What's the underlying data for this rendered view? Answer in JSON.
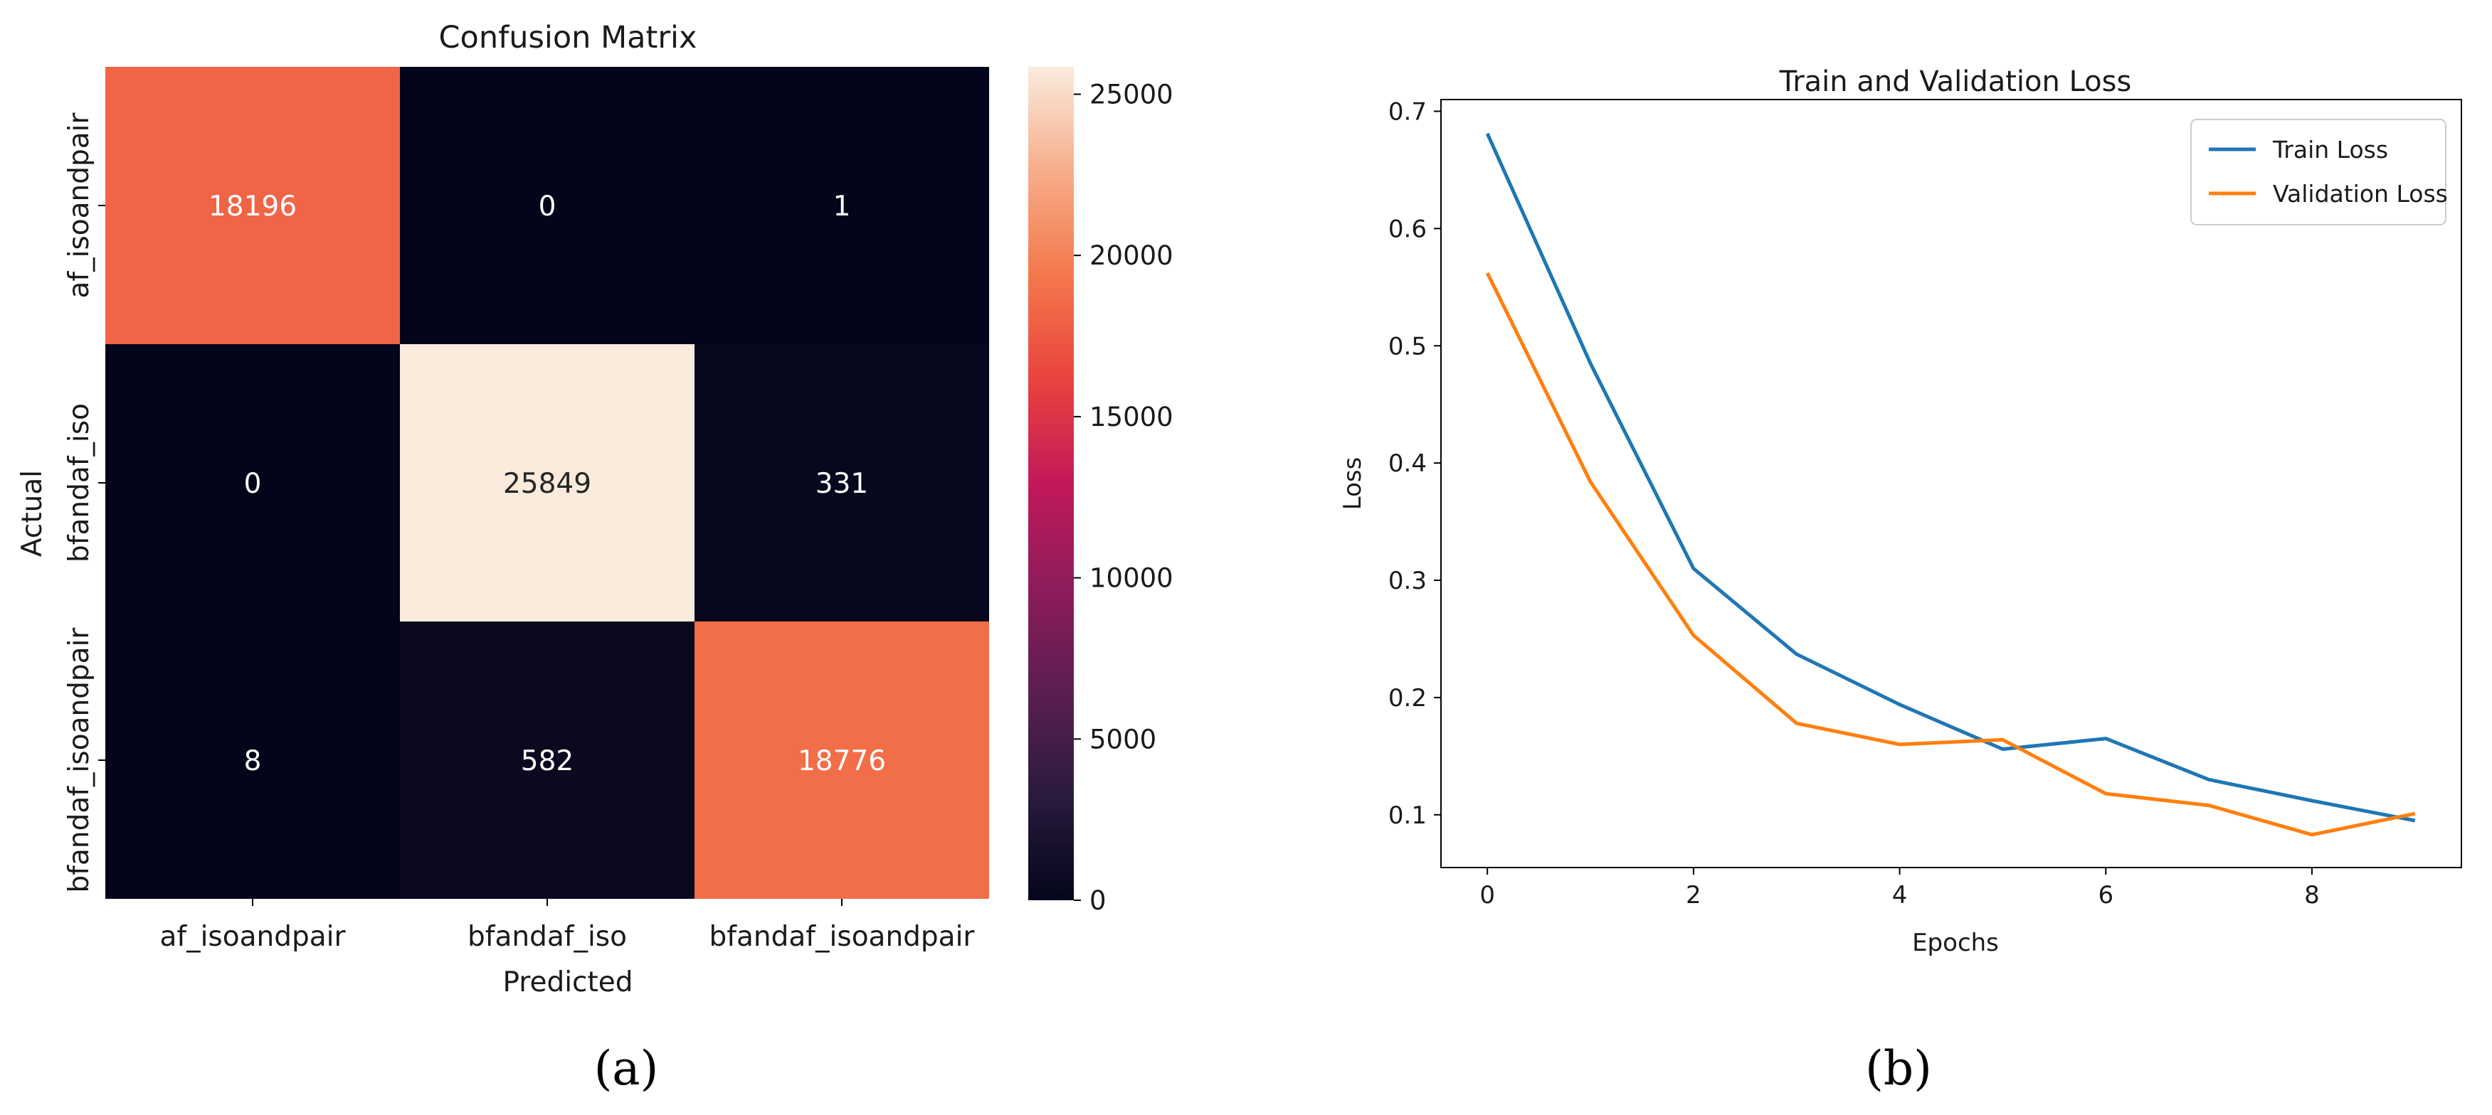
{
  "panels": {
    "a_label": "(a)",
    "b_label": "(b)"
  },
  "chart_data": [
    {
      "type": "heatmap",
      "title": "Confusion Matrix",
      "xlabel": "Predicted",
      "ylabel": "Actual",
      "x_categories": [
        "af_isoandpair",
        "bfandaf_iso",
        "bfandaf_isoandpair"
      ],
      "y_categories": [
        "af_isoandpair",
        "bfandaf_iso",
        "bfandaf_isoandpair"
      ],
      "values": [
        [
          18196,
          0,
          1
        ],
        [
          0,
          25849,
          331
        ],
        [
          8,
          582,
          18776
        ]
      ],
      "colorbar": {
        "min": 0,
        "max": 25849,
        "ticks": [
          0,
          5000,
          10000,
          15000,
          20000,
          25000
        ],
        "colormap": "rocket"
      }
    },
    {
      "type": "line",
      "title": "Train and Validation Loss",
      "xlabel": "Epochs",
      "ylabel": "Loss",
      "x": [
        0,
        1,
        2,
        3,
        4,
        5,
        6,
        7,
        8,
        9
      ],
      "xticks": [
        0,
        2,
        4,
        6,
        8
      ],
      "yticks": [
        0.1,
        0.2,
        0.3,
        0.4,
        0.5,
        0.6,
        0.7
      ],
      "xlim": [
        -0.45,
        9.45
      ],
      "ylim": [
        0.055,
        0.71
      ],
      "legend_position": "top-right",
      "grid": false,
      "series": [
        {
          "name": "Train Loss",
          "color": "#1f77b4",
          "values": [
            0.681,
            0.485,
            0.31,
            0.237,
            0.194,
            0.156,
            0.165,
            0.13,
            0.112,
            0.095
          ]
        },
        {
          "name": "Validation Loss",
          "color": "#ff7f0e",
          "values": [
            0.562,
            0.384,
            0.253,
            0.178,
            0.16,
            0.164,
            0.118,
            0.108,
            0.083,
            0.101
          ]
        }
      ]
    }
  ]
}
